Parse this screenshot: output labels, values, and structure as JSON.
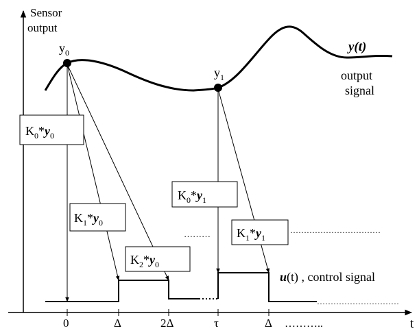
{
  "axes": {
    "y_label_line1": "Sensor",
    "y_label_line2": "output",
    "x_label": "t"
  },
  "ticks": {
    "t0": "0",
    "t1": "Δ",
    "t2": "2Δ",
    "t3": "τ",
    "t4": "Δ",
    "t5_dots": "……….."
  },
  "points": {
    "y0": {
      "base": "y",
      "sub": "0"
    },
    "y1": {
      "base": "y",
      "sub": "1"
    }
  },
  "output_signal": {
    "name": "y(t)",
    "desc_line1": "output",
    "desc_line2": "signal"
  },
  "control_signal": {
    "name_base": "u",
    "name_rest": "(t) ,  control signal"
  },
  "boxes": {
    "k0y0": {
      "k": "K",
      "ksub": "0",
      "star": "*",
      "y": "y",
      "ysub": "0"
    },
    "k1y0": {
      "k": "K",
      "ksub": "1",
      "star": "*",
      "y": "y",
      "ysub": "0"
    },
    "k2y0": {
      "k": "K",
      "ksub": "2",
      "star": "*",
      "y": "y",
      "ysub": "0"
    },
    "k0y1": {
      "k": "K",
      "ksub": "0",
      "star": "*",
      "y": "y",
      "ysub": "1"
    },
    "k1y1": {
      "k": "K",
      "ksub": "1",
      "star": "*",
      "y": "y",
      "ysub": "1"
    }
  },
  "dots": {
    "mid": "………",
    "right_box": "……………………………",
    "control_end": "…………………………"
  }
}
